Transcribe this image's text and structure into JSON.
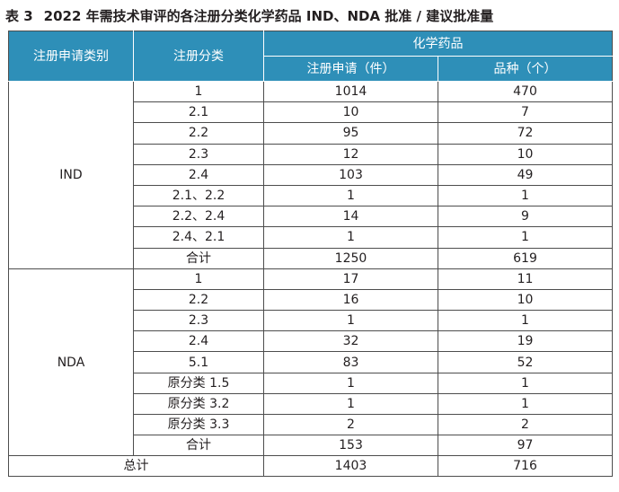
{
  "caption": {
    "label": "表 3",
    "title": "2022 年需技术审评的各注册分类化学药品 IND、NDA 批准 / 建议批准量"
  },
  "header": {
    "col_type": "注册申请类别",
    "col_class": "注册分类",
    "group": "化学药品",
    "col_apps": "注册申请（件）",
    "col_varieties": "品种（个）"
  },
  "groups": [
    {
      "name": "IND",
      "rows": [
        {
          "cls": "1",
          "apps": "1014",
          "varieties": "470"
        },
        {
          "cls": "2.1",
          "apps": "10",
          "varieties": "7"
        },
        {
          "cls": "2.2",
          "apps": "95",
          "varieties": "72"
        },
        {
          "cls": "2.3",
          "apps": "12",
          "varieties": "10"
        },
        {
          "cls": "2.4",
          "apps": "103",
          "varieties": "49"
        },
        {
          "cls": "2.1、2.2",
          "apps": "1",
          "varieties": "1"
        },
        {
          "cls": "2.2、2.4",
          "apps": "14",
          "varieties": "9"
        },
        {
          "cls": "2.4、2.1",
          "apps": "1",
          "varieties": "1"
        },
        {
          "cls": "合计",
          "apps": "1250",
          "varieties": "619"
        }
      ]
    },
    {
      "name": "NDA",
      "rows": [
        {
          "cls": "1",
          "apps": "17",
          "varieties": "11"
        },
        {
          "cls": "2.2",
          "apps": "16",
          "varieties": "10"
        },
        {
          "cls": "2.3",
          "apps": "1",
          "varieties": "1"
        },
        {
          "cls": "2.4",
          "apps": "32",
          "varieties": "19"
        },
        {
          "cls": "5.1",
          "apps": "83",
          "varieties": "52"
        },
        {
          "cls": "原分类 1.5",
          "apps": "1",
          "varieties": "1"
        },
        {
          "cls": "原分类 3.2",
          "apps": "1",
          "varieties": "1"
        },
        {
          "cls": "原分类 3.3",
          "apps": "2",
          "varieties": "2"
        },
        {
          "cls": "合计",
          "apps": "153",
          "varieties": "97"
        }
      ]
    }
  ],
  "total": {
    "label": "总计",
    "apps": "1403",
    "varieties": "716"
  },
  "colors": {
    "header_bg": "#2e8fb8",
    "header_text": "#ffffff",
    "grid": "#4d4d4d"
  }
}
